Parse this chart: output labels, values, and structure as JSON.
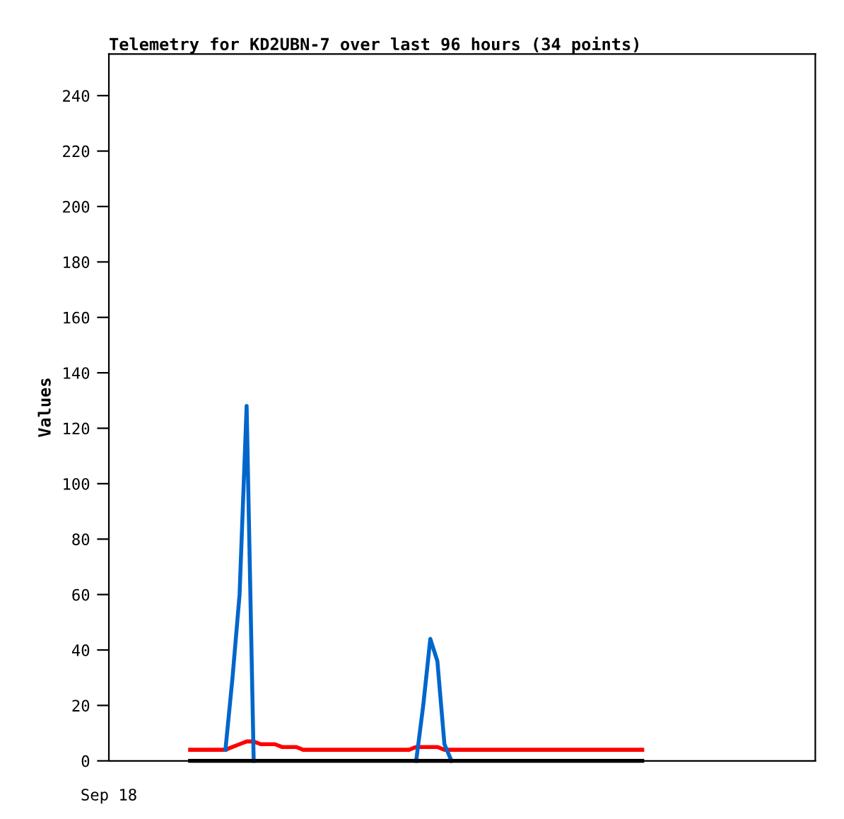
{
  "chart_data": {
    "type": "line",
    "title": "Telemetry for KD2UBN-7 over last 96 hours (34 points)",
    "ylabel": "Values",
    "annotations": [
      "Sep 18"
    ],
    "categories": [
      null,
      null,
      null,
      null,
      null,
      null,
      null,
      null,
      null,
      null,
      null,
      null,
      null,
      null,
      null,
      null,
      null,
      null,
      null,
      null,
      null,
      null,
      null,
      null,
      null,
      null,
      null,
      null,
      null,
      null,
      null,
      null,
      null,
      null,
      null,
      null,
      null,
      null,
      null,
      null,
      null,
      null,
      null,
      null,
      null,
      null,
      null,
      null,
      null,
      null,
      null,
      null,
      null,
      null,
      null,
      null,
      null,
      null,
      null,
      null,
      null,
      null,
      null,
      null,
      null,
      null,
      null,
      null,
      null,
      null,
      null,
      null,
      null,
      null,
      null,
      null,
      null,
      null,
      null,
      null,
      null,
      null,
      null,
      null,
      null,
      null,
      null,
      null,
      null,
      null,
      null,
      null,
      null,
      null,
      null,
      null,
      null,
      null,
      null,
      null
    ],
    "ylim": [
      0,
      255
    ],
    "yticks": [
      0,
      20,
      40,
      60,
      80,
      100,
      120,
      140,
      160,
      180,
      200,
      220,
      240
    ],
    "grid": false,
    "legend": false,
    "marker": "none",
    "line_style": "solid",
    "series": [
      {
        "color": "#ff0000",
        "values": [
          null,
          null,
          null,
          null,
          null,
          null,
          null,
          null,
          null,
          null,
          null,
          4,
          4,
          4,
          4,
          4,
          4,
          5,
          6,
          7,
          7,
          6,
          6,
          6,
          5,
          5,
          5,
          4,
          4,
          4,
          4,
          4,
          4,
          4,
          4,
          4,
          4,
          4,
          4,
          4,
          4,
          4,
          4,
          5,
          5,
          5,
          5,
          4,
          4,
          4,
          4,
          4,
          4,
          4,
          4,
          4,
          4,
          4,
          4,
          4,
          4,
          4,
          4,
          4,
          4,
          4,
          4,
          4,
          4,
          4,
          4,
          4,
          4,
          4,
          4,
          4,
          null,
          null,
          null,
          null,
          null,
          null,
          null,
          null,
          null,
          null,
          null,
          null,
          null,
          null,
          null,
          null,
          null,
          null,
          null,
          null,
          null,
          null,
          null,
          null
        ]
      },
      {
        "color": "#0066cc",
        "values": [
          null,
          null,
          null,
          null,
          null,
          null,
          null,
          null,
          null,
          null,
          null,
          null,
          null,
          null,
          null,
          null,
          4,
          30,
          60,
          128,
          0,
          null,
          null,
          null,
          null,
          null,
          null,
          null,
          null,
          null,
          null,
          null,
          null,
          null,
          null,
          null,
          null,
          null,
          null,
          null,
          null,
          null,
          null,
          0,
          20,
          44,
          36,
          6,
          0,
          null,
          null,
          null,
          null,
          null,
          null,
          null,
          null,
          null,
          null,
          null,
          null,
          null,
          null,
          null,
          null,
          null,
          null,
          null,
          null,
          null,
          null,
          null,
          null,
          null,
          null,
          null,
          null,
          null,
          null,
          null,
          null,
          null,
          null,
          null,
          null,
          null,
          null,
          null,
          null,
          null,
          null,
          null,
          null,
          null,
          null,
          null,
          null,
          null,
          null,
          null
        ]
      },
      {
        "color": "#000000",
        "values": [
          null,
          null,
          null,
          null,
          null,
          null,
          null,
          null,
          null,
          null,
          null,
          0,
          0,
          0,
          0,
          0,
          0,
          0,
          0,
          0,
          0,
          0,
          0,
          0,
          0,
          0,
          0,
          0,
          0,
          0,
          0,
          0,
          0,
          0,
          0,
          0,
          0,
          0,
          0,
          0,
          0,
          0,
          0,
          0,
          0,
          0,
          0,
          0,
          0,
          0,
          0,
          0,
          0,
          0,
          0,
          0,
          0,
          0,
          0,
          0,
          0,
          0,
          0,
          0,
          0,
          0,
          0,
          0,
          0,
          0,
          0,
          0,
          0,
          0,
          0,
          0,
          null,
          null,
          null,
          null,
          null,
          null,
          null,
          null,
          null,
          null,
          null,
          null,
          null,
          null,
          null,
          null,
          null,
          null,
          null,
          null,
          null,
          null,
          null,
          null
        ]
      }
    ]
  }
}
